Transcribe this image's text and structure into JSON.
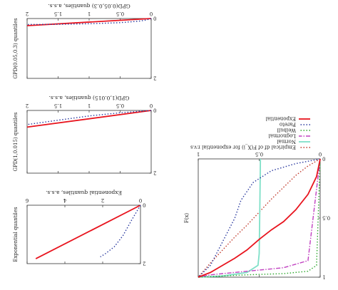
{
  "chart_data": [
    {
      "id": "p1",
      "type": "line",
      "title": "GPD(0.05,0.3) quantiles, a.s.s.",
      "ylabel": "GPD(0.05,0.3) quantiles",
      "xticks": [
        "0",
        "0.5",
        "1",
        "1.5",
        "2"
      ],
      "yticks": [
        "0",
        "2"
      ],
      "xlim": [
        0,
        2
      ],
      "ylim": [
        0,
        3.2
      ],
      "series": [
        {
          "name": "",
          "color": "#e8141e",
          "style": "solid",
          "x": [
            0,
            2
          ],
          "y": [
            0,
            0.38
          ]
        },
        {
          "name": "",
          "color": "#2b3a9f",
          "style": "dotted",
          "x": [
            0,
            0.08,
            0.2,
            0.5,
            1.0,
            1.5,
            2.0
          ],
          "y": [
            0,
            0.08,
            0.14,
            0.22,
            0.28,
            0.31,
            0.32
          ]
        }
      ]
    },
    {
      "id": "p2",
      "type": "line",
      "title": "GPD(1,0.015) quantiles, a.s.s.",
      "ylabel": "GPD(1,0.015) quantiles",
      "xticks": [
        "0",
        "0.5",
        "1",
        "1.5",
        "2"
      ],
      "yticks": [
        "0",
        "2"
      ],
      "xlim": [
        0,
        2
      ],
      "ylim": [
        0,
        3.2
      ],
      "series": [
        {
          "name": "",
          "color": "#e8141e",
          "style": "solid",
          "x": [
            0,
            2
          ],
          "y": [
            0,
            0.85
          ]
        },
        {
          "name": "",
          "color": "#2b3a9f",
          "style": "dotted",
          "x": [
            0,
            0.5,
            1.0,
            1.5,
            2.0
          ],
          "y": [
            0,
            0.12,
            0.28,
            0.5,
            0.72
          ]
        }
      ]
    },
    {
      "id": "p3",
      "type": "line",
      "title": "Exponential quantiles, a.s.s.",
      "ylabel": "Exponential quantiles",
      "xticks": [
        "0",
        "2",
        "4",
        "6"
      ],
      "yticks": [
        "0",
        "2"
      ],
      "xlim": [
        0,
        6.5
      ],
      "ylim": [
        0,
        2.6
      ],
      "series": [
        {
          "name": "",
          "color": "#e8141e",
          "style": "solid",
          "x": [
            0,
            6
          ],
          "y": [
            0,
            2.38
          ]
        },
        {
          "name": "",
          "color": "#2b3a9f",
          "style": "dotted",
          "x": [
            0,
            0.5,
            1.0,
            1.5,
            2.0,
            2.3
          ],
          "y": [
            0,
            0.65,
            1.35,
            1.85,
            2.15,
            2.3
          ]
        }
      ]
    },
    {
      "id": "p4",
      "type": "line",
      "ylabel": "F(x)",
      "xticks": [
        "0",
        "0.5",
        "1"
      ],
      "yticks": [
        "0",
        "0.5",
        "1"
      ],
      "xlim": [
        0,
        1
      ],
      "ylim": [
        0,
        1
      ],
      "legend_position": "top",
      "series": [
        {
          "name": "Empirical df of F(X_i) for exponential r.v.s",
          "color": "#c0392b",
          "style": "dotted",
          "x": [
            0,
            0.1,
            0.2,
            0.3,
            0.4,
            0.5,
            0.6,
            0.7,
            0.8,
            0.9,
            1.0
          ],
          "y": [
            0,
            0.06,
            0.14,
            0.24,
            0.34,
            0.45,
            0.56,
            0.66,
            0.77,
            0.88,
            1.0
          ]
        },
        {
          "name": "Normal",
          "color": "#7fe0c8",
          "style": "solid",
          "x": [
            0.49,
            0.495,
            0.5,
            0.51,
            0.6,
            0.8,
            1.0
          ],
          "y": [
            0,
            0.4,
            0.8,
            0.9,
            0.96,
            0.99,
            1.0
          ]
        },
        {
          "name": "Lognormal",
          "color": "#c040c0",
          "style": "dashdot",
          "x": [
            0,
            0.1,
            0.3,
            0.6,
            0.8,
            0.9,
            1.0
          ],
          "y": [
            0,
            0.86,
            0.92,
            0.95,
            0.97,
            0.98,
            1.0
          ]
        },
        {
          "name": "Weibull",
          "color": "#2ca82c",
          "style": "dotted",
          "x": [
            0,
            0.03,
            0.1,
            0.3,
            0.6,
            1.0
          ],
          "y": [
            0,
            0.9,
            0.95,
            0.97,
            0.98,
            1.0
          ]
        },
        {
          "name": "Pareto",
          "color": "#2b3a9f",
          "style": "dotted",
          "x": [
            0,
            0.2,
            0.4,
            0.55,
            0.65,
            0.7,
            0.8,
            0.9,
            1.0
          ],
          "y": [
            0,
            0.04,
            0.1,
            0.2,
            0.35,
            0.5,
            0.7,
            0.9,
            1.0
          ]
        },
        {
          "name": "Exponential",
          "color": "#e8141e",
          "style": "solid",
          "x": [
            0,
            0.03,
            0.1,
            0.2,
            0.3,
            0.4,
            0.5,
            0.6,
            0.7,
            0.8,
            0.9,
            1.0
          ],
          "y": [
            0,
            0.15,
            0.3,
            0.43,
            0.53,
            0.6,
            0.68,
            0.77,
            0.84,
            0.9,
            0.96,
            1.0
          ]
        }
      ]
    }
  ]
}
